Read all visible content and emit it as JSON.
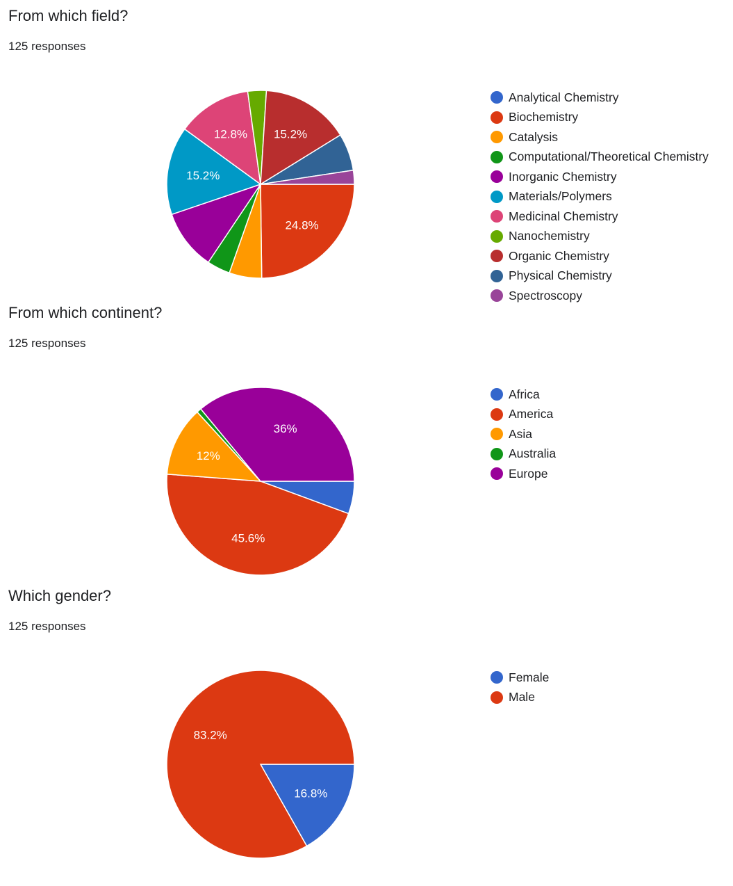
{
  "chart_data": [
    {
      "type": "pie",
      "title": "From which field?",
      "subtitle": "125 responses",
      "categories": [
        "Analytical Chemistry",
        "Biochemistry",
        "Catalysis",
        "Computational/Theoretical Chemistry",
        "Inorganic Chemistry",
        "Materials/Polymers",
        "Medicinal Chemistry",
        "Nanochemistry",
        "Organic Chemistry",
        "Physical Chemistry",
        "Spectroscopy"
      ],
      "values": [
        0,
        24.8,
        5.6,
        4.0,
        10.4,
        15.2,
        12.8,
        3.2,
        15.2,
        6.4,
        2.4
      ],
      "data_labels": [
        "",
        "24.8%",
        "",
        "",
        "",
        "15.2%",
        "12.8%",
        "",
        "15.2%",
        "",
        ""
      ],
      "colors": [
        "#3366cc",
        "#dc3912",
        "#ff9900",
        "#109618",
        "#990099",
        "#0099c6",
        "#dd4477",
        "#66aa00",
        "#b82e2e",
        "#316395",
        "#994499"
      ],
      "legend_position": "right"
    },
    {
      "type": "pie",
      "title": "From which continent?",
      "subtitle": "125 responses",
      "categories": [
        "Africa",
        "America",
        "Asia",
        "Australia",
        "Europe"
      ],
      "values": [
        5.6,
        45.6,
        12.0,
        0.8,
        36.0
      ],
      "data_labels": [
        "",
        "45.6%",
        "12%",
        "",
        "36%"
      ],
      "colors": [
        "#3366cc",
        "#dc3912",
        "#ff9900",
        "#109618",
        "#990099"
      ],
      "legend_position": "right"
    },
    {
      "type": "pie",
      "title": "Which gender?",
      "subtitle": "125 responses",
      "categories": [
        "Female",
        "Male"
      ],
      "values": [
        16.8,
        83.2
      ],
      "data_labels": [
        "16.8%",
        "83.2%"
      ],
      "colors": [
        "#3366cc",
        "#dc3912"
      ],
      "legend_position": "right"
    }
  ]
}
